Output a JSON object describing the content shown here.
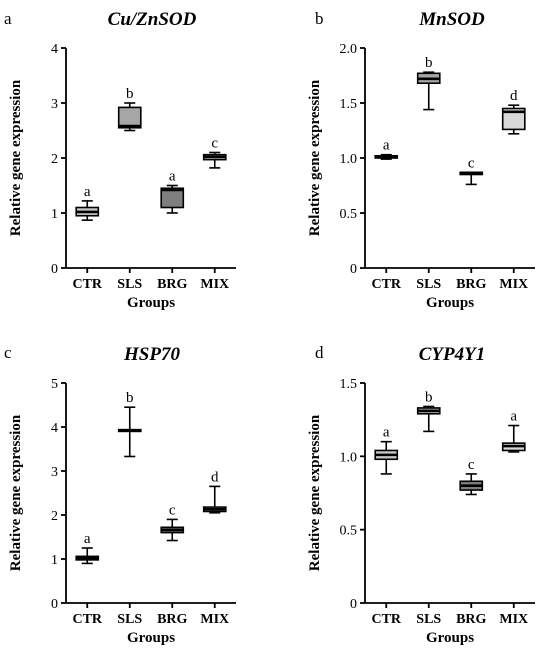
{
  "chart_data": [
    {
      "type": "box",
      "panel_label": "a",
      "title": "Cu/ZnSOD",
      "xlabel": "Groups",
      "ylabel": "Relative gene expression",
      "categories": [
        "CTR",
        "SLS",
        "BRG",
        "MIX"
      ],
      "ylim": [
        0,
        4
      ],
      "yticks": [
        "0",
        "1",
        "2",
        "3",
        "4"
      ],
      "ytick_values": [
        0,
        1,
        2,
        3,
        4
      ],
      "boxes": [
        {
          "min": 0.87,
          "q1": 0.95,
          "median": 1.02,
          "q3": 1.1,
          "max": 1.22,
          "fill": "#c8c8c8",
          "letter": "a"
        },
        {
          "min": 2.5,
          "q1": 2.55,
          "median": 2.58,
          "q3": 2.92,
          "max": 3.0,
          "fill": "#a6a6a6",
          "letter": "b"
        },
        {
          "min": 1.0,
          "q1": 1.1,
          "median": 1.42,
          "q3": 1.45,
          "max": 1.5,
          "fill": "#7f7f7f",
          "letter": "a"
        },
        {
          "min": 1.82,
          "q1": 1.97,
          "median": 2.02,
          "q3": 2.06,
          "max": 2.1,
          "fill": "#d9d9d9",
          "letter": "c"
        }
      ]
    },
    {
      "type": "box",
      "panel_label": "b",
      "title": "MnSOD",
      "xlabel": "Groups",
      "ylabel": "Relative gene expression",
      "categories": [
        "CTR",
        "SLS",
        "BRG",
        "MIX"
      ],
      "ylim": [
        0,
        2
      ],
      "yticks": [
        "0",
        "0.5",
        "1.0",
        "1.5",
        "2.0"
      ],
      "ytick_values": [
        0,
        0.5,
        1.0,
        1.5,
        2.0
      ],
      "boxes": [
        {
          "min": 0.99,
          "q1": 1.0,
          "median": 1.01,
          "q3": 1.02,
          "max": 1.03,
          "fill": "#3a3a3a",
          "letter": "a"
        },
        {
          "min": 1.44,
          "q1": 1.68,
          "median": 1.72,
          "q3": 1.77,
          "max": 1.78,
          "fill": "#a6a6a6",
          "letter": "b"
        },
        {
          "min": 0.76,
          "q1": 0.85,
          "median": 0.86,
          "q3": 0.87,
          "max": 0.87,
          "fill": "#7f7f7f",
          "letter": "c"
        },
        {
          "min": 1.22,
          "q1": 1.26,
          "median": 1.42,
          "q3": 1.45,
          "max": 1.48,
          "fill": "#d9d9d9",
          "letter": "d"
        }
      ]
    },
    {
      "type": "box",
      "panel_label": "c",
      "title": "HSP70",
      "xlabel": "Groups",
      "ylabel": "Relative gene expression",
      "categories": [
        "CTR",
        "SLS",
        "BRG",
        "MIX"
      ],
      "ylim": [
        0,
        5
      ],
      "yticks": [
        "0",
        "1",
        "2",
        "3",
        "4",
        "5"
      ],
      "ytick_values": [
        0,
        1,
        2,
        3,
        4,
        5
      ],
      "boxes": [
        {
          "min": 0.9,
          "q1": 0.98,
          "median": 1.02,
          "q3": 1.06,
          "max": 1.25,
          "fill": "#c8c8c8",
          "letter": "a"
        },
        {
          "min": 3.33,
          "q1": 3.9,
          "median": 3.92,
          "q3": 3.94,
          "max": 4.45,
          "fill": "#a6a6a6",
          "letter": "b"
        },
        {
          "min": 1.42,
          "q1": 1.6,
          "median": 1.66,
          "q3": 1.72,
          "max": 1.9,
          "fill": "#7f7f7f",
          "letter": "c"
        },
        {
          "min": 2.05,
          "q1": 2.08,
          "median": 2.13,
          "q3": 2.18,
          "max": 2.65,
          "fill": "#d9d9d9",
          "letter": "d"
        }
      ]
    },
    {
      "type": "box",
      "panel_label": "d",
      "title": "CYP4Y1",
      "xlabel": "Groups",
      "ylabel": "Relative gene expression",
      "categories": [
        "CTR",
        "SLS",
        "BRG",
        "MIX"
      ],
      "ylim": [
        0,
        1.5
      ],
      "yticks": [
        "0",
        "0.5",
        "1.0",
        "1.5"
      ],
      "ytick_values": [
        0,
        0.5,
        1.0,
        1.5
      ],
      "boxes": [
        {
          "min": 0.88,
          "q1": 0.98,
          "median": 1.01,
          "q3": 1.04,
          "max": 1.1,
          "fill": "#c8c8c8",
          "letter": "a"
        },
        {
          "min": 1.17,
          "q1": 1.29,
          "median": 1.31,
          "q3": 1.33,
          "max": 1.34,
          "fill": "#a6a6a6",
          "letter": "b"
        },
        {
          "min": 0.74,
          "q1": 0.77,
          "median": 0.8,
          "q3": 0.83,
          "max": 0.88,
          "fill": "#7f7f7f",
          "letter": "c"
        },
        {
          "min": 1.03,
          "q1": 1.04,
          "median": 1.07,
          "q3": 1.09,
          "max": 1.21,
          "fill": "#d9d9d9",
          "letter": "a"
        }
      ]
    }
  ]
}
